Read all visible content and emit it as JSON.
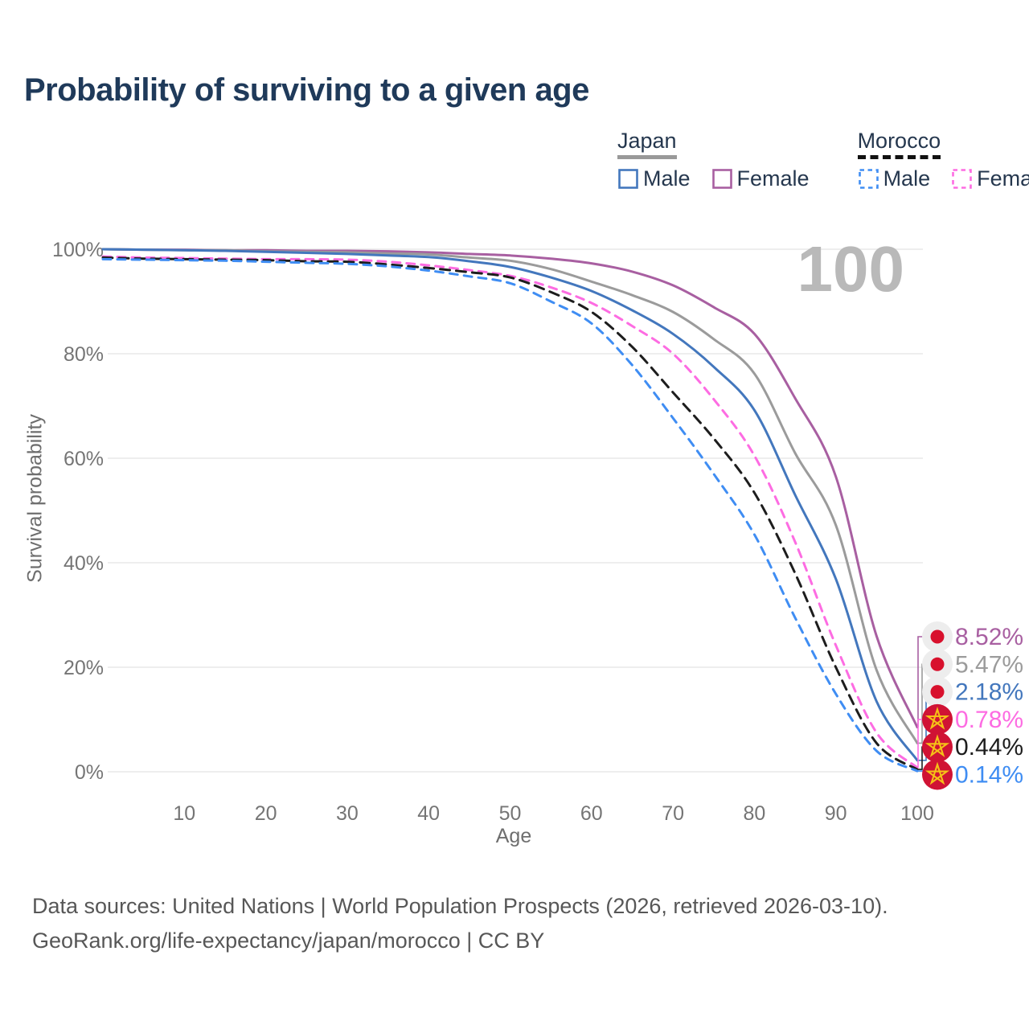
{
  "page": {
    "title": "Probability of surviving to a given age",
    "watermark_hover_age": "100",
    "source_line1": "Data sources: United Nations | World Population Prospects (2026, retrieved 2026-03-10).",
    "source_line2": "GeoRank.org/life-expectancy/japan/morocco | CC BY"
  },
  "legend": {
    "groups": [
      {
        "label": "Japan",
        "underline_style": "solid",
        "underline_color": "#999999",
        "items": [
          {
            "label": "Male",
            "color": "#4377bd",
            "dashed": false
          },
          {
            "label": "Female",
            "color": "#a85fa1",
            "dashed": false
          }
        ]
      },
      {
        "label": "Morocco",
        "underline_style": "dashed",
        "underline_color": "#111111",
        "items": [
          {
            "label": "Male",
            "color": "#3f8df3",
            "dashed": true
          },
          {
            "label": "Female",
            "color": "#fd6ce2",
            "dashed": true
          }
        ]
      }
    ]
  },
  "chart_data": {
    "type": "line",
    "title": "Probability of surviving to a given age",
    "xlabel": "Age",
    "ylabel": "Survival probability",
    "xlim": [
      0,
      100
    ],
    "ylim": [
      0,
      100
    ],
    "grid": "horizontal",
    "legend_position": "top-right",
    "x_ticks": [
      10,
      20,
      30,
      40,
      50,
      60,
      70,
      80,
      90,
      100
    ],
    "y_tick_values": [
      0,
      20,
      40,
      60,
      80,
      100
    ],
    "y_tick_labels": [
      "0%",
      "20%",
      "40%",
      "60%",
      "80%",
      "100%"
    ],
    "hover_readout_age": "100",
    "ages": [
      0,
      5,
      10,
      15,
      20,
      25,
      30,
      35,
      40,
      45,
      50,
      55,
      60,
      65,
      70,
      75,
      80,
      85,
      90,
      95,
      100
    ],
    "series": [
      {
        "name": "Japan Female",
        "country": "Japan",
        "sex": "Female",
        "color": "#a85fa1",
        "dash": "solid",
        "flag": "japan",
        "end_label": "8.52%",
        "values": [
          100,
          99.9,
          99.9,
          99.8,
          99.8,
          99.7,
          99.7,
          99.6,
          99.4,
          99.1,
          98.8,
          98.2,
          97.3,
          95.7,
          93.1,
          88.9,
          83.8,
          71.5,
          56.5,
          26.0,
          8.52
        ]
      },
      {
        "name": "Japan Both sexes",
        "country": "Japan",
        "sex": "Both",
        "color": "#9b9b9b",
        "dash": "solid",
        "flag": "japan",
        "end_label": "5.47%",
        "values": [
          100,
          99.9,
          99.8,
          99.8,
          99.6,
          99.5,
          99.4,
          99.2,
          99.0,
          98.4,
          97.8,
          96.2,
          93.8,
          91.2,
          88.0,
          82.8,
          76.2,
          61.0,
          47.2,
          19.5,
          5.47
        ]
      },
      {
        "name": "Japan Male",
        "country": "Japan",
        "sex": "Male",
        "color": "#4377bd",
        "dash": "solid",
        "flag": "japan",
        "end_label": "2.18%",
        "values": [
          100,
          99.9,
          99.8,
          99.7,
          99.5,
          99.3,
          99.1,
          98.8,
          98.5,
          97.7,
          96.6,
          94.6,
          92.0,
          88.3,
          83.8,
          77.5,
          69.2,
          53.0,
          36.9,
          13.5,
          2.18
        ]
      },
      {
        "name": "Morocco Female",
        "country": "Morocco",
        "sex": "Female",
        "color": "#fd6ce2",
        "dash": "dashed",
        "flag": "morocco",
        "end_label": "0.78%",
        "values": [
          98.6,
          98.4,
          98.3,
          98.2,
          98.1,
          98.1,
          98.0,
          97.6,
          96.9,
          96.0,
          94.9,
          92.7,
          89.7,
          85.3,
          80.0,
          71.3,
          60.5,
          44.0,
          24.2,
          7.5,
          0.78
        ]
      },
      {
        "name": "Morocco Both sexes",
        "country": "Morocco",
        "sex": "Both",
        "color": "#1d1d1d",
        "dash": "dashed",
        "flag": "morocco",
        "end_label": "0.44%",
        "values": [
          98.4,
          98.2,
          98.1,
          98.0,
          97.9,
          97.7,
          97.6,
          97.1,
          96.4,
          95.6,
          94.6,
          91.8,
          88.0,
          81.3,
          72.6,
          63.8,
          53.4,
          38.0,
          20.0,
          5.5,
          0.44
        ]
      },
      {
        "name": "Morocco Male",
        "country": "Morocco",
        "sex": "Male",
        "color": "#3f8df3",
        "dash": "dashed",
        "flag": "morocco",
        "end_label": "0.14%",
        "values": [
          98.1,
          98.0,
          97.9,
          97.8,
          97.6,
          97.4,
          97.2,
          96.7,
          95.9,
          94.8,
          93.5,
          90.0,
          85.8,
          77.8,
          67.7,
          57.0,
          45.4,
          29.5,
          14.9,
          4.0,
          0.14
        ]
      }
    ]
  }
}
